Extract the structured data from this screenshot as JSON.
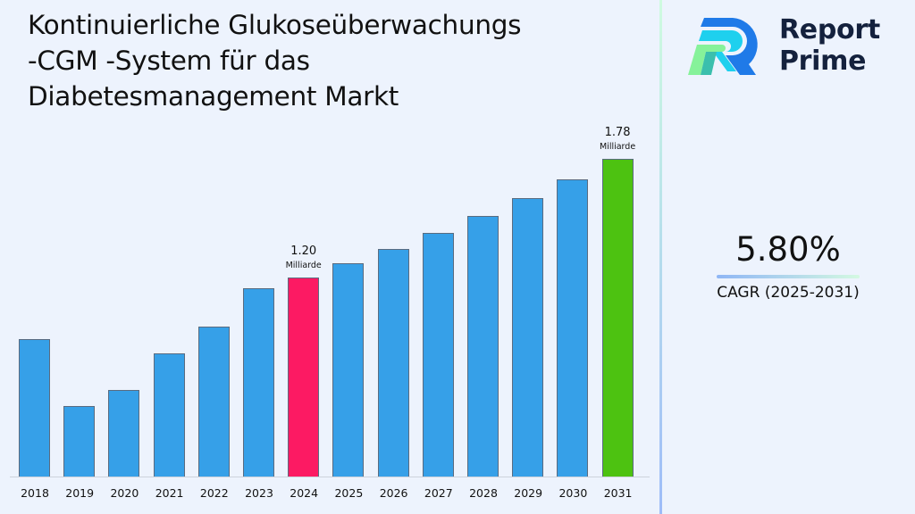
{
  "title": {
    "lines": [
      "Kontinuierliche Glukoseüberwachungs",
      "-CGM -System für das",
      "Diabetesmanagement Markt"
    ]
  },
  "logo": {
    "line1": "Report",
    "line2": "Prime",
    "icon": "report-prime-r-logo-icon"
  },
  "cagr": {
    "value": "5.80%",
    "label": "CAGR (2025-2031)"
  },
  "colors": {
    "bar_default": "#36a0e8",
    "bar_highlight_base": "#fc1a63",
    "bar_highlight_final": "#4dc211",
    "text": "#111111",
    "logo_text": "#14213d",
    "background": "#edf3fd"
  },
  "chart_data": {
    "type": "bar",
    "title": "Kontinuierliche Glukoseüberwachungs -CGM -System für das Diabetesmanagement Markt",
    "xlabel": "",
    "ylabel": "",
    "unit": "Milliarde",
    "categories": [
      "2018",
      "2019",
      "2020",
      "2021",
      "2022",
      "2023",
      "2024",
      "2025",
      "2026",
      "2027",
      "2028",
      "2029",
      "2030",
      "2031"
    ],
    "values": [
      0.9,
      0.57,
      0.65,
      0.83,
      0.96,
      1.15,
      1.2,
      1.27,
      1.34,
      1.42,
      1.5,
      1.59,
      1.68,
      1.78
    ],
    "annotations": [
      {
        "category": "2024",
        "value_label": "1.20",
        "unit_label": "Milliarde"
      },
      {
        "category": "2031",
        "value_label": "1.78",
        "unit_label": "Milliarde"
      }
    ],
    "highlight": {
      "2024": "#fc1a63",
      "2031": "#4dc211"
    },
    "grid": false,
    "legend": null,
    "cagr": "5.80%",
    "cagr_period": "2025-2031"
  }
}
